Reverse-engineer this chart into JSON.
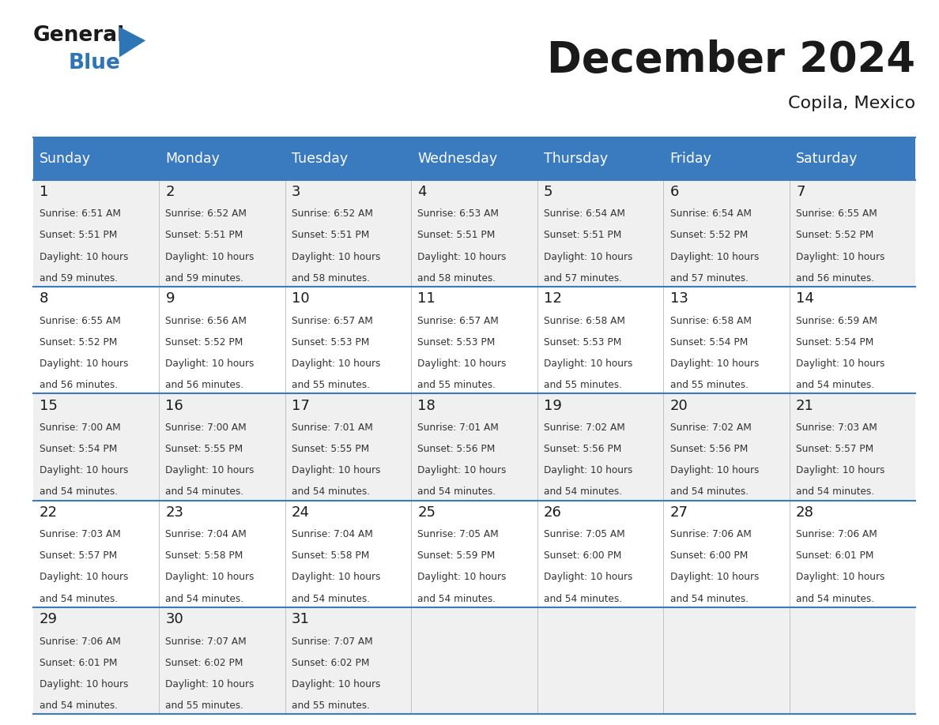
{
  "title": "December 2024",
  "subtitle": "Copila, Mexico",
  "header_color": "#3a7bbf",
  "header_text_color": "#ffffff",
  "cell_bg_light": "#f0f0f0",
  "cell_bg_white": "#ffffff",
  "day_name_color": "#1a1a1a",
  "number_color": "#1a1a1a",
  "text_color": "#333333",
  "line_color": "#3a7bbf",
  "days_of_week": [
    "Sunday",
    "Monday",
    "Tuesday",
    "Wednesday",
    "Thursday",
    "Friday",
    "Saturday"
  ],
  "weeks": [
    [
      {
        "day": 1,
        "sunrise": "6:51 AM",
        "sunset": "5:51 PM",
        "daylight_hours": 10,
        "daylight_minutes": 59
      },
      {
        "day": 2,
        "sunrise": "6:52 AM",
        "sunset": "5:51 PM",
        "daylight_hours": 10,
        "daylight_minutes": 59
      },
      {
        "day": 3,
        "sunrise": "6:52 AM",
        "sunset": "5:51 PM",
        "daylight_hours": 10,
        "daylight_minutes": 58
      },
      {
        "day": 4,
        "sunrise": "6:53 AM",
        "sunset": "5:51 PM",
        "daylight_hours": 10,
        "daylight_minutes": 58
      },
      {
        "day": 5,
        "sunrise": "6:54 AM",
        "sunset": "5:51 PM",
        "daylight_hours": 10,
        "daylight_minutes": 57
      },
      {
        "day": 6,
        "sunrise": "6:54 AM",
        "sunset": "5:52 PM",
        "daylight_hours": 10,
        "daylight_minutes": 57
      },
      {
        "day": 7,
        "sunrise": "6:55 AM",
        "sunset": "5:52 PM",
        "daylight_hours": 10,
        "daylight_minutes": 56
      }
    ],
    [
      {
        "day": 8,
        "sunrise": "6:55 AM",
        "sunset": "5:52 PM",
        "daylight_hours": 10,
        "daylight_minutes": 56
      },
      {
        "day": 9,
        "sunrise": "6:56 AM",
        "sunset": "5:52 PM",
        "daylight_hours": 10,
        "daylight_minutes": 56
      },
      {
        "day": 10,
        "sunrise": "6:57 AM",
        "sunset": "5:53 PM",
        "daylight_hours": 10,
        "daylight_minutes": 55
      },
      {
        "day": 11,
        "sunrise": "6:57 AM",
        "sunset": "5:53 PM",
        "daylight_hours": 10,
        "daylight_minutes": 55
      },
      {
        "day": 12,
        "sunrise": "6:58 AM",
        "sunset": "5:53 PM",
        "daylight_hours": 10,
        "daylight_minutes": 55
      },
      {
        "day": 13,
        "sunrise": "6:58 AM",
        "sunset": "5:54 PM",
        "daylight_hours": 10,
        "daylight_minutes": 55
      },
      {
        "day": 14,
        "sunrise": "6:59 AM",
        "sunset": "5:54 PM",
        "daylight_hours": 10,
        "daylight_minutes": 54
      }
    ],
    [
      {
        "day": 15,
        "sunrise": "7:00 AM",
        "sunset": "5:54 PM",
        "daylight_hours": 10,
        "daylight_minutes": 54
      },
      {
        "day": 16,
        "sunrise": "7:00 AM",
        "sunset": "5:55 PM",
        "daylight_hours": 10,
        "daylight_minutes": 54
      },
      {
        "day": 17,
        "sunrise": "7:01 AM",
        "sunset": "5:55 PM",
        "daylight_hours": 10,
        "daylight_minutes": 54
      },
      {
        "day": 18,
        "sunrise": "7:01 AM",
        "sunset": "5:56 PM",
        "daylight_hours": 10,
        "daylight_minutes": 54
      },
      {
        "day": 19,
        "sunrise": "7:02 AM",
        "sunset": "5:56 PM",
        "daylight_hours": 10,
        "daylight_minutes": 54
      },
      {
        "day": 20,
        "sunrise": "7:02 AM",
        "sunset": "5:56 PM",
        "daylight_hours": 10,
        "daylight_minutes": 54
      },
      {
        "day": 21,
        "sunrise": "7:03 AM",
        "sunset": "5:57 PM",
        "daylight_hours": 10,
        "daylight_minutes": 54
      }
    ],
    [
      {
        "day": 22,
        "sunrise": "7:03 AM",
        "sunset": "5:57 PM",
        "daylight_hours": 10,
        "daylight_minutes": 54
      },
      {
        "day": 23,
        "sunrise": "7:04 AM",
        "sunset": "5:58 PM",
        "daylight_hours": 10,
        "daylight_minutes": 54
      },
      {
        "day": 24,
        "sunrise": "7:04 AM",
        "sunset": "5:58 PM",
        "daylight_hours": 10,
        "daylight_minutes": 54
      },
      {
        "day": 25,
        "sunrise": "7:05 AM",
        "sunset": "5:59 PM",
        "daylight_hours": 10,
        "daylight_minutes": 54
      },
      {
        "day": 26,
        "sunrise": "7:05 AM",
        "sunset": "6:00 PM",
        "daylight_hours": 10,
        "daylight_minutes": 54
      },
      {
        "day": 27,
        "sunrise": "7:06 AM",
        "sunset": "6:00 PM",
        "daylight_hours": 10,
        "daylight_minutes": 54
      },
      {
        "day": 28,
        "sunrise": "7:06 AM",
        "sunset": "6:01 PM",
        "daylight_hours": 10,
        "daylight_minutes": 54
      }
    ],
    [
      {
        "day": 29,
        "sunrise": "7:06 AM",
        "sunset": "6:01 PM",
        "daylight_hours": 10,
        "daylight_minutes": 54
      },
      {
        "day": 30,
        "sunrise": "7:07 AM",
        "sunset": "6:02 PM",
        "daylight_hours": 10,
        "daylight_minutes": 55
      },
      {
        "day": 31,
        "sunrise": "7:07 AM",
        "sunset": "6:02 PM",
        "daylight_hours": 10,
        "daylight_minutes": 55
      },
      null,
      null,
      null,
      null
    ]
  ],
  "logo_general_color": "#1a1a1a",
  "logo_blue_color": "#2e75b6",
  "logo_triangle_color": "#2e75b6"
}
